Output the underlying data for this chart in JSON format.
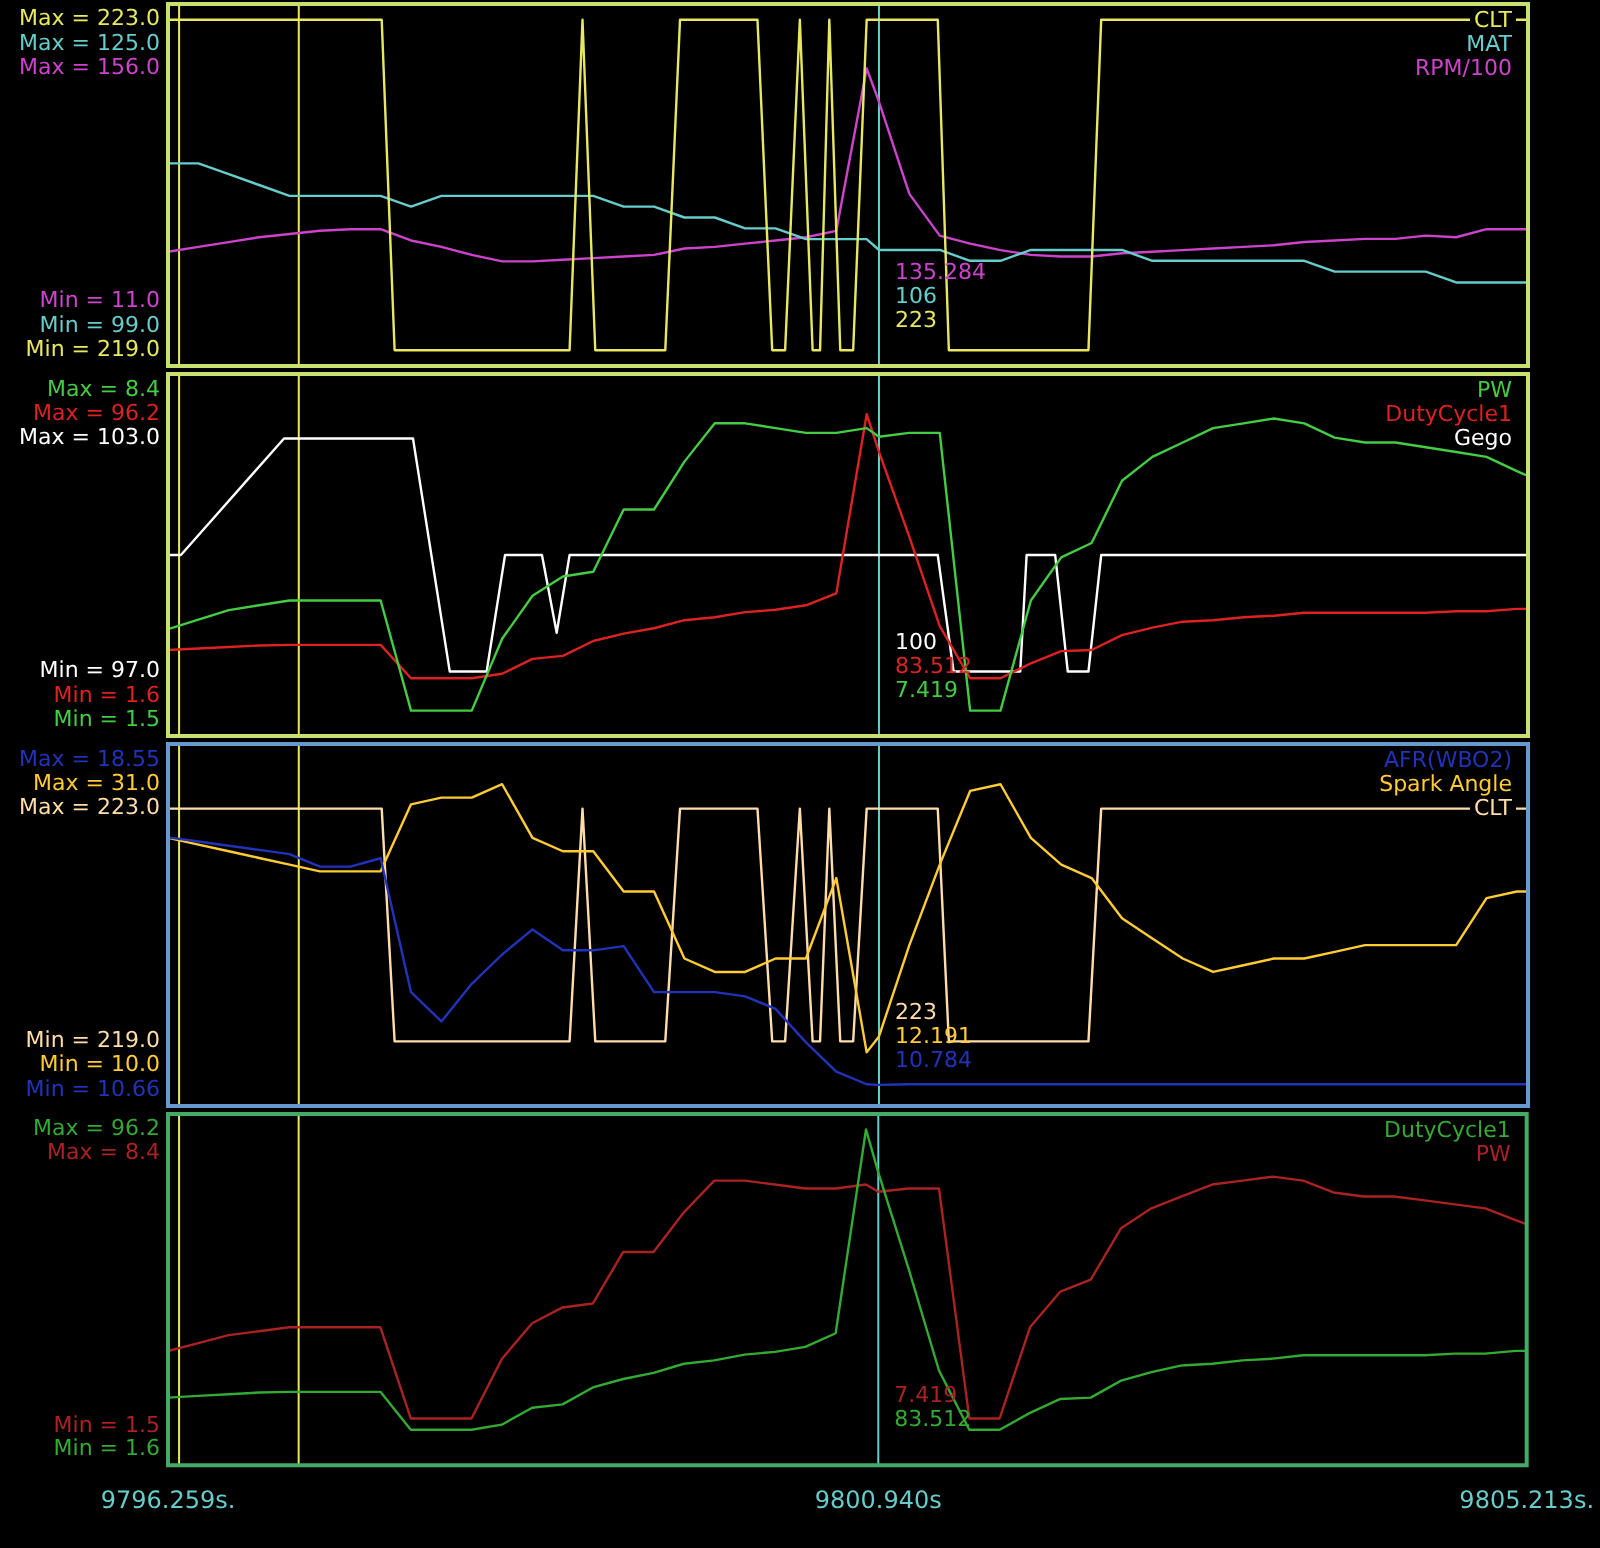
{
  "chart_data": [
    {
      "type": "line",
      "tick_labels": "y",
      "legend": "top right",
      "xlim": [
        9796.259,
        9805.213
      ],
      "x": [
        9796.259,
        9796.459,
        9796.659,
        9796.859,
        9797.059,
        9797.259,
        9797.459,
        9797.659,
        9797.859,
        9798.059,
        9798.259,
        9798.459,
        9798.659,
        9798.859,
        9799.059,
        9799.259,
        9799.459,
        9799.659,
        9799.859,
        9800.059,
        9800.259,
        9800.459,
        9800.659,
        9800.859,
        9800.94,
        9801.14,
        9801.34,
        9801.54,
        9801.74,
        9801.94,
        9802.14,
        9802.34,
        9802.54,
        9802.74,
        9802.94,
        9803.14,
        9803.34,
        9803.54,
        9803.74,
        9803.94,
        9804.14,
        9804.34,
        9804.54,
        9804.74,
        9804.94,
        9805.14,
        9805.213
      ],
      "ylim": [
        218.81,
        223.19
      ],
      "yticks": [
        {
          "value": 219,
          "label": "Min = 219.0"
        },
        {
          "value": 223,
          "label": "Max = 223.0"
        }
      ],
      "y2lim": [
        95.29,
        128.71
      ],
      "y2ticks": [
        {
          "value": 99,
          "label": "Min = 99.0"
        },
        {
          "value": 125,
          "label": "Max = 125.0"
        }
      ],
      "y3lim": [
        -29.1,
        196.1
      ],
      "y3ticks": [
        {
          "value": 11,
          "label": "Min = 11.0"
        },
        {
          "value": 156,
          "label": "Max = 156.0"
        }
      ],
      "series": [
        {
          "name": "CLT",
          "color": "#e8e860",
          "axis": "y",
          "x": [
            9796.259,
            9797.666,
            9797.751,
            9798.903,
            9798.988,
            9799.072,
            9799.533,
            9799.63,
            9800.14,
            9800.237,
            9800.322,
            9800.419,
            9800.503,
            9800.552,
            9800.613,
            9800.685,
            9800.77,
            9800.859,
            9800.94,
            9801.327,
            9801.4,
            9802.319,
            9802.403,
            9805.213
          ],
          "values": [
            223,
            223,
            219,
            219,
            223,
            219,
            219,
            223,
            223,
            219,
            219,
            223,
            219,
            219,
            223,
            219,
            219,
            223,
            223,
            223,
            219,
            219,
            223,
            223
          ]
        },
        {
          "name": "MAT",
          "color": "#66cccc",
          "axis": "y2",
          "values": [
            114,
            114,
            113,
            112,
            111,
            111,
            111,
            111,
            110,
            111,
            111,
            111,
            111,
            111,
            111,
            110,
            110,
            109,
            109,
            108,
            108,
            107,
            107,
            107,
            106,
            106,
            106,
            105,
            105,
            106,
            106,
            106,
            106,
            105,
            105,
            105,
            105,
            105,
            105,
            104,
            104,
            104,
            104,
            103,
            103,
            103,
            103
          ]
        },
        {
          "name": "RPM/100",
          "color": "#cc44cc",
          "axis": "y3",
          "values": [
            42,
            45,
            48,
            51,
            53,
            55,
            56,
            56,
            49,
            45,
            40,
            36,
            36,
            37,
            38,
            39,
            40,
            44,
            45,
            47,
            49,
            51,
            55,
            156,
            135.284,
            78,
            52,
            47,
            43,
            40,
            39,
            39,
            41,
            42,
            43,
            44,
            45,
            46,
            48,
            49,
            50,
            50,
            52,
            51,
            56,
            56,
            56
          ]
        }
      ],
      "ref_lines": [
        {
          "axis": "x",
          "value": 9796.332,
          "color": "#e8e860"
        },
        {
          "axis": "x",
          "value": 9797.12,
          "color": "#e8e860"
        },
        {
          "axis": "x",
          "value": 9800.94,
          "color": "#66cccc"
        }
      ],
      "annotations": [
        "135.284",
        "106",
        "223"
      ]
    },
    {
      "type": "line",
      "tick_labels": "y",
      "legend": "top right",
      "xlim": [
        9796.259,
        9805.213
      ],
      "x": [
        9796.259,
        9796.459,
        9796.659,
        9796.859,
        9797.059,
        9797.259,
        9797.459,
        9797.659,
        9797.859,
        9798.059,
        9798.259,
        9798.459,
        9798.659,
        9798.859,
        9799.059,
        9799.259,
        9799.459,
        9799.659,
        9799.859,
        9800.059,
        9800.259,
        9800.459,
        9800.659,
        9800.859,
        9800.94,
        9801.14,
        9801.34,
        9801.54,
        9801.74,
        9801.94,
        9802.14,
        9802.34,
        9802.54,
        9802.74,
        9802.94,
        9803.14,
        9803.34,
        9803.54,
        9803.74,
        9803.94,
        9804.14,
        9804.34,
        9804.54,
        9804.74,
        9804.94,
        9805.14,
        9805.213
      ],
      "ylim": [
        1.17,
        8.73
      ],
      "yticks": [
        {
          "value": 1.5,
          "label": "Min = 1.5"
        },
        {
          "value": 8.4,
          "label": "Max = 8.4"
        }
      ],
      "y2lim": [
        -11.9,
        109.7
      ],
      "y2ticks": [
        {
          "value": 1.6,
          "label": "Min = 1.6"
        },
        {
          "value": 96.2,
          "label": "Max = 96.2"
        }
      ],
      "y3lim": [
        95.34,
        104.66
      ],
      "y3ticks": [
        {
          "value": 97,
          "label": "Min = 97.0"
        },
        {
          "value": 103,
          "label": "Max = 103.0"
        }
      ],
      "series": [
        {
          "name": "PW",
          "color": "#44cc44",
          "axis": "y",
          "values": [
            3.4,
            3.6,
            3.8,
            3.9,
            4.0,
            4.0,
            4.0,
            4.0,
            1.7,
            1.7,
            1.7,
            3.2,
            4.1,
            4.5,
            4.6,
            5.9,
            5.9,
            6.9,
            7.7,
            7.7,
            7.6,
            7.5,
            7.5,
            7.6,
            7.419,
            7.5,
            7.5,
            1.7,
            1.7,
            4.0,
            4.9,
            5.2,
            6.5,
            7.0,
            7.3,
            7.6,
            7.7,
            7.8,
            7.7,
            7.4,
            7.3,
            7.3,
            7.2,
            7.1,
            7.0,
            6.7,
            6.6
          ]
        },
        {
          "name": "DutyCycle1",
          "color": "#dd2222",
          "axis": "y2",
          "values": [
            17,
            17.5,
            18,
            18.5,
            18.7,
            18.7,
            18.7,
            18.7,
            7.5,
            7.5,
            7.5,
            9,
            14,
            15,
            20,
            22.5,
            24.3,
            27,
            28,
            29.7,
            30.5,
            32,
            36,
            96.2,
            83.512,
            55,
            25,
            7.5,
            7.5,
            12.5,
            16.6,
            17,
            22,
            24.5,
            26.5,
            27,
            28,
            28.5,
            29.5,
            29.5,
            29.5,
            29.5,
            29.5,
            30,
            30,
            30.8,
            30.8
          ]
        },
        {
          "name": "Gego",
          "color": "#ffffff",
          "axis": "y3",
          "x": [
            9796.259,
            9796.344,
            9797.023,
            9797.872,
            9798.114,
            9798.357,
            9798.478,
            9798.721,
            9798.818,
            9798.903,
            9800.94,
            9801.327,
            9801.431,
            9801.87,
            9801.912,
            9802.1,
            9802.183,
            9802.319,
            9802.403,
            9805.213
          ],
          "values": [
            100,
            100,
            103,
            103,
            97,
            97,
            100,
            100,
            98,
            100,
            100,
            100,
            97,
            97,
            100,
            100,
            97,
            97,
            100,
            100
          ]
        }
      ],
      "ref_lines": [
        {
          "axis": "x",
          "value": 9796.332,
          "color": "#e8e860"
        },
        {
          "axis": "x",
          "value": 9797.12,
          "color": "#e8e860"
        },
        {
          "axis": "x",
          "value": 9800.94,
          "color": "#66cccc"
        }
      ],
      "annotations": [
        "100",
        "83.512",
        "7.419"
      ]
    },
    {
      "type": "line",
      "tick_labels": "y",
      "legend": "top right",
      "xlim": [
        9796.259,
        9805.213
      ],
      "x": [
        9796.259,
        9796.459,
        9796.659,
        9796.859,
        9797.059,
        9797.259,
        9797.459,
        9797.659,
        9797.859,
        9798.059,
        9798.259,
        9798.459,
        9798.659,
        9798.859,
        9799.059,
        9799.259,
        9799.459,
        9799.659,
        9799.859,
        9800.059,
        9800.259,
        9800.459,
        9800.659,
        9800.859,
        9800.94,
        9801.14,
        9801.34,
        9801.54,
        9801.74,
        9801.94,
        9802.14,
        9802.34,
        9802.54,
        9802.74,
        9802.94,
        9803.14,
        9803.34,
        9803.54,
        9803.74,
        9803.94,
        9804.14,
        9804.34,
        9804.54,
        9804.74,
        9804.94,
        9805.14,
        9805.213
      ],
      "ylim": [
        10.28,
        18.93
      ],
      "yticks": [
        {
          "value": 10.66,
          "label": "Min = 10.66"
        },
        {
          "value": 18.55,
          "label": "Max = 18.55"
        }
      ],
      "y2lim": [
        7.0,
        34.0
      ],
      "y2ticks": [
        {
          "value": 10,
          "label": "Min = 10.0"
        },
        {
          "value": 31,
          "label": "Max = 31.0"
        }
      ],
      "y3lim": [
        217.89,
        224.11
      ],
      "y3ticks": [
        {
          "value": 219,
          "label": "Min = 219.0"
        },
        {
          "value": 223,
          "label": "Max = 223.0"
        }
      ],
      "series": [
        {
          "name": "AFR(WBO2)",
          "color": "#2233bb",
          "axis": "y",
          "values": [
            16.7,
            16.6,
            16.5,
            16.4,
            16.3,
            16.0,
            16.0,
            16.2,
            13.0,
            12.3,
            13.2,
            13.9,
            14.5,
            14.0,
            14.0,
            14.1,
            13.0,
            13.0,
            13.0,
            12.9,
            12.6,
            11.8,
            11.1,
            10.8,
            10.784,
            10.8,
            10.8,
            10.8,
            10.8,
            10.8,
            10.8,
            10.8,
            10.8,
            10.8,
            10.8,
            10.8,
            10.8,
            10.8,
            10.8,
            10.8,
            10.8,
            10.8,
            10.8,
            10.8,
            10.8,
            10.8,
            10.8
          ]
        },
        {
          "name": "Spark Angle",
          "color": "#ffcc33",
          "axis": "y2",
          "values": [
            27,
            26.5,
            26,
            25.5,
            25,
            24.5,
            24.5,
            24.5,
            29.5,
            30,
            30,
            31,
            27,
            26,
            26,
            23,
            23,
            18,
            17,
            17,
            18,
            18,
            24,
            11,
            12.191,
            19,
            25,
            30.5,
            31,
            27,
            25,
            24,
            21,
            19.5,
            18,
            17,
            17.5,
            18,
            18,
            18.5,
            19,
            19,
            19,
            19,
            22.5,
            23,
            23
          ]
        },
        {
          "name": "CLT",
          "color": "#ffddaa",
          "axis": "y3",
          "x": [
            9796.259,
            9797.666,
            9797.751,
            9798.903,
            9798.988,
            9799.072,
            9799.533,
            9799.63,
            9800.14,
            9800.237,
            9800.322,
            9800.419,
            9800.503,
            9800.552,
            9800.613,
            9800.685,
            9800.77,
            9800.859,
            9800.94,
            9801.327,
            9801.4,
            9802.319,
            9802.403,
            9805.213
          ],
          "values": [
            223,
            223,
            219,
            219,
            223,
            219,
            219,
            223,
            223,
            219,
            219,
            223,
            219,
            219,
            223,
            219,
            219,
            223,
            223,
            223,
            219,
            219,
            223,
            223
          ]
        }
      ],
      "ref_lines": [
        {
          "axis": "x",
          "value": 9796.332,
          "color": "#e8e860"
        },
        {
          "axis": "x",
          "value": 9797.12,
          "color": "#e8e860"
        },
        {
          "axis": "x",
          "value": 9800.94,
          "color": "#66cccc"
        }
      ],
      "annotations": [
        "223",
        "12.191",
        "10.784"
      ]
    },
    {
      "type": "line",
      "legend": "top right",
      "xlim": [
        9796.259,
        9805.213
      ],
      "xticks": [
        {
          "value": 9796.259,
          "label": "9796.259s."
        },
        {
          "value": 9800.94,
          "label": "9800.940s"
        },
        {
          "value": 9805.213,
          "label": "9805.213s."
        }
      ],
      "x": [
        9796.259,
        9796.459,
        9796.659,
        9796.859,
        9797.059,
        9797.259,
        9797.459,
        9797.659,
        9797.859,
        9798.059,
        9798.259,
        9798.459,
        9798.659,
        9798.859,
        9799.059,
        9799.259,
        9799.459,
        9799.659,
        9799.859,
        9800.059,
        9800.259,
        9800.459,
        9800.659,
        9800.859,
        9800.94,
        9801.14,
        9801.34,
        9801.54,
        9801.74,
        9801.94,
        9802.14,
        9802.34,
        9802.54,
        9802.74,
        9802.94,
        9803.14,
        9803.34,
        9803.54,
        9803.74,
        9803.94,
        9804.14,
        9804.34,
        9804.54,
        9804.74,
        9804.94,
        9805.14,
        9805.213
      ],
      "ylim": [
        -2.97,
        100.77
      ],
      "yticks": [
        {
          "value": 1.6,
          "label": "Min = 1.6"
        },
        {
          "value": 96.2,
          "label": "Max = 96.2"
        }
      ],
      "y2lim": [
        0.52,
        9.38
      ],
      "y2ticks": [
        {
          "value": 1.5,
          "label": "Min = 1.5"
        },
        {
          "value": 8.4,
          "label": "Max = 8.4"
        }
      ],
      "series": [
        {
          "name": "DutyCycle1",
          "color": "#33aa33",
          "axis": "y",
          "values": [
            17,
            17.5,
            18,
            18.5,
            18.7,
            18.7,
            18.7,
            18.7,
            7.5,
            7.5,
            7.5,
            9,
            14,
            15,
            20,
            22.5,
            24.3,
            27,
            28,
            29.7,
            30.5,
            32,
            36,
            96.2,
            83.512,
            55,
            25,
            7.5,
            7.5,
            12.5,
            16.6,
            17,
            22,
            24.5,
            26.5,
            27,
            28,
            28.5,
            29.5,
            29.5,
            29.5,
            29.5,
            29.5,
            30,
            30,
            30.8,
            30.8
          ]
        },
        {
          "name": "PW",
          "color": "#aa2222",
          "axis": "y2",
          "values": [
            3.4,
            3.6,
            3.8,
            3.9,
            4.0,
            4.0,
            4.0,
            4.0,
            1.7,
            1.7,
            1.7,
            3.2,
            4.1,
            4.5,
            4.6,
            5.9,
            5.9,
            6.9,
            7.7,
            7.7,
            7.6,
            7.5,
            7.5,
            7.6,
            7.419,
            7.5,
            7.5,
            1.7,
            1.7,
            4.0,
            4.9,
            5.2,
            6.5,
            7.0,
            7.3,
            7.6,
            7.7,
            7.8,
            7.7,
            7.4,
            7.3,
            7.3,
            7.2,
            7.1,
            7.0,
            6.7,
            6.6
          ]
        }
      ],
      "ref_lines": [
        {
          "axis": "x",
          "value": 9796.332,
          "color": "#e8e860"
        },
        {
          "axis": "x",
          "value": 9797.12,
          "color": "#e8e860"
        },
        {
          "axis": "x",
          "value": 9800.94,
          "color": "#66cccc"
        }
      ],
      "annotations": [
        "7.419",
        "83.512"
      ]
    }
  ]
}
